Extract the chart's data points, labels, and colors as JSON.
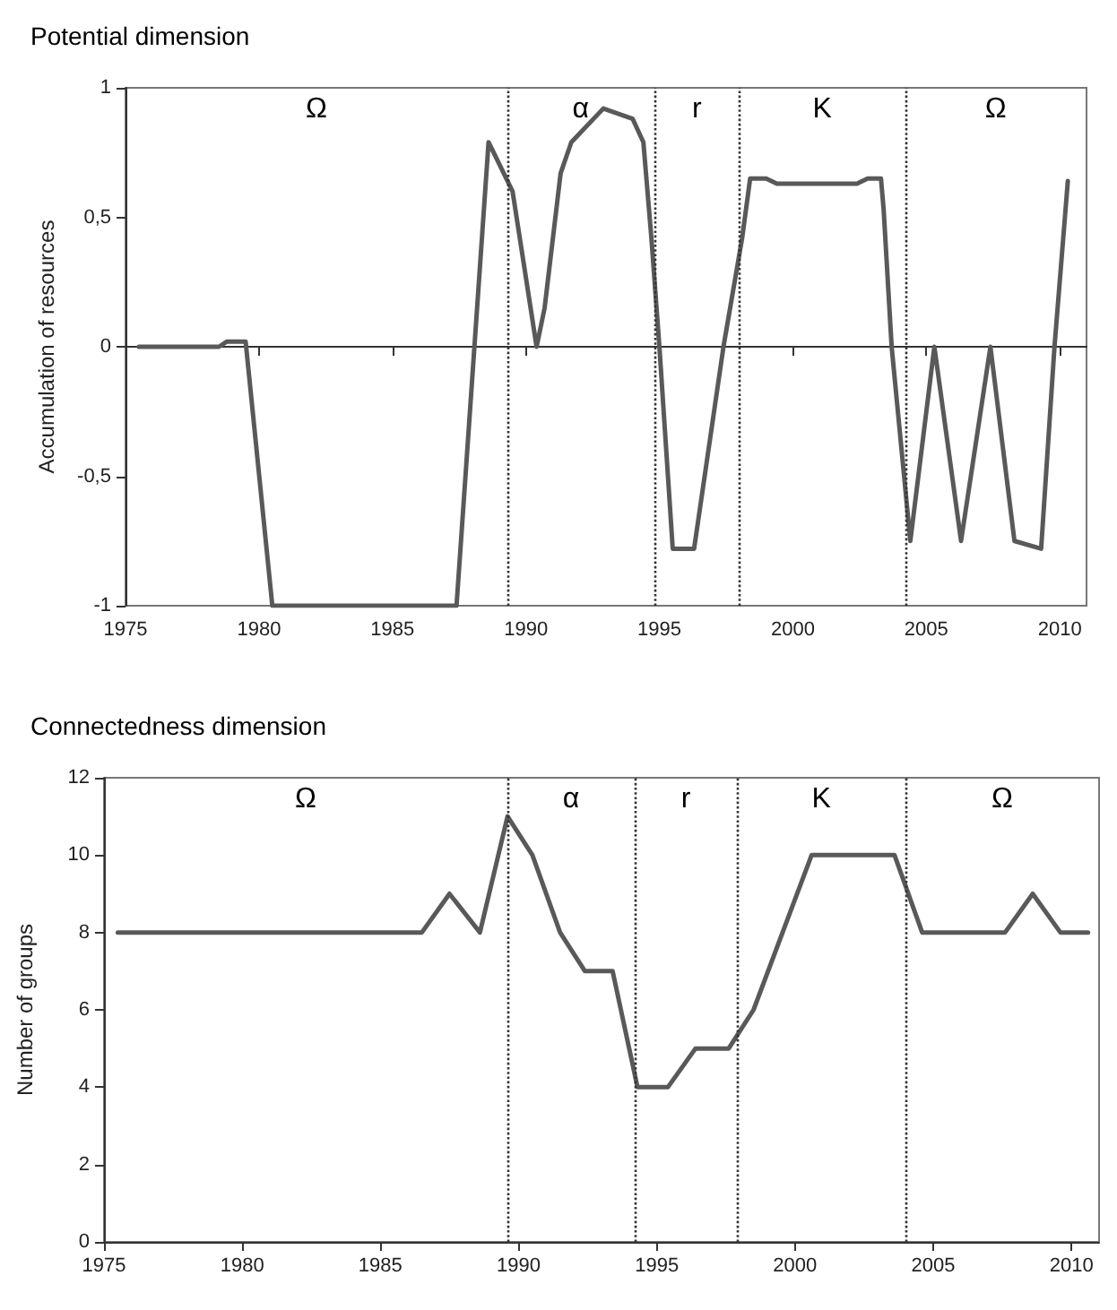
{
  "chart_data": [
    {
      "type": "line",
      "title": "Potential dimension",
      "ylabel": "Accumulation of resources",
      "color": "#595959",
      "marker": "none",
      "line_style": "solid",
      "x": [
        1975.5,
        1978.5,
        1978.8,
        1979.5,
        1980.5,
        1987.4,
        1988.6,
        1989.5,
        1990.4,
        1990.7,
        1991.3,
        1991.7,
        1992.9,
        1994,
        1994.4,
        1994.7,
        1995,
        1995.5,
        1996.3,
        1997.4,
        1998.1,
        1998.4,
        1999,
        1999.4,
        2002.4,
        2002.8,
        2003.3,
        2003.4,
        2003.7,
        2004.4,
        2005.3,
        2006.3,
        2007.4,
        2008.3,
        2009.3,
        2009.8,
        2010.3
      ],
      "values": [
        0,
        0,
        0.02,
        0.02,
        -1,
        -1,
        0.79,
        0.6,
        0,
        0.15,
        0.67,
        0.79,
        0.92,
        0.88,
        0.79,
        0.42,
        0,
        -0.78,
        -0.78,
        0,
        0.42,
        0.65,
        0.65,
        0.63,
        0.63,
        0.65,
        0.65,
        0.53,
        0,
        -0.75,
        0,
        -0.75,
        0,
        -0.75,
        -0.78,
        0,
        0.64
      ],
      "xlim": [
        1975,
        2011
      ],
      "xticks": [
        1975,
        1980,
        1985,
        1990,
        1995,
        2000,
        2005,
        2010
      ],
      "ylim": [
        -1,
        1
      ],
      "yticks": [
        -1,
        {
          "value": -0.5,
          "label": "-0,5"
        },
        0,
        {
          "value": 0.5,
          "label": "0,5"
        },
        1
      ],
      "ref_lines": [
        {
          "axis": "x",
          "value": 1989.3,
          "line_style": "dotted"
        },
        {
          "axis": "x",
          "value": 1994.8,
          "line_style": "dotted"
        },
        {
          "axis": "x",
          "value": 1998,
          "line_style": "dotted"
        },
        {
          "axis": "x",
          "value": 2004.2,
          "line_style": "dotted"
        }
      ],
      "annotations": [
        "Ω",
        "α",
        "r",
        "K",
        "Ω"
      ]
    },
    {
      "type": "line",
      "title": "Connectedness dimension",
      "ylabel": "Number of groups",
      "color": "#595959",
      "marker": "none",
      "line_style": "solid",
      "x": [
        1975.5,
        1986.5,
        1987.5,
        1988.6,
        1989.6,
        1990.5,
        1991.5,
        1992.4,
        1993.4,
        1994.3,
        1995.4,
        1996.4,
        1997.6,
        1998.5,
        2000.6,
        2003.6,
        2004.6,
        2007.6,
        2008.6,
        2009.6,
        2010.6
      ],
      "values": [
        8,
        8,
        9,
        8,
        11,
        10,
        8,
        7,
        7,
        4,
        4,
        5,
        5,
        6,
        10,
        10,
        8,
        8,
        9,
        8,
        8
      ],
      "xlim": [
        1975,
        2011
      ],
      "xticks": [
        1975,
        1980,
        1985,
        1990,
        1995,
        2000,
        2005,
        2010
      ],
      "ylim": [
        0,
        12
      ],
      "yticks": [
        0,
        2,
        4,
        6,
        8,
        10,
        12
      ],
      "ref_lines": [
        {
          "axis": "x",
          "value": 1989.6,
          "line_style": "dotted"
        },
        {
          "axis": "x",
          "value": 1994.2,
          "line_style": "dotted"
        },
        {
          "axis": "x",
          "value": 1997.9,
          "line_style": "dotted"
        },
        {
          "axis": "x",
          "value": 2004,
          "line_style": "dotted"
        }
      ],
      "annotations": [
        "Ω",
        "α",
        "r",
        "K",
        "Ω"
      ]
    }
  ]
}
